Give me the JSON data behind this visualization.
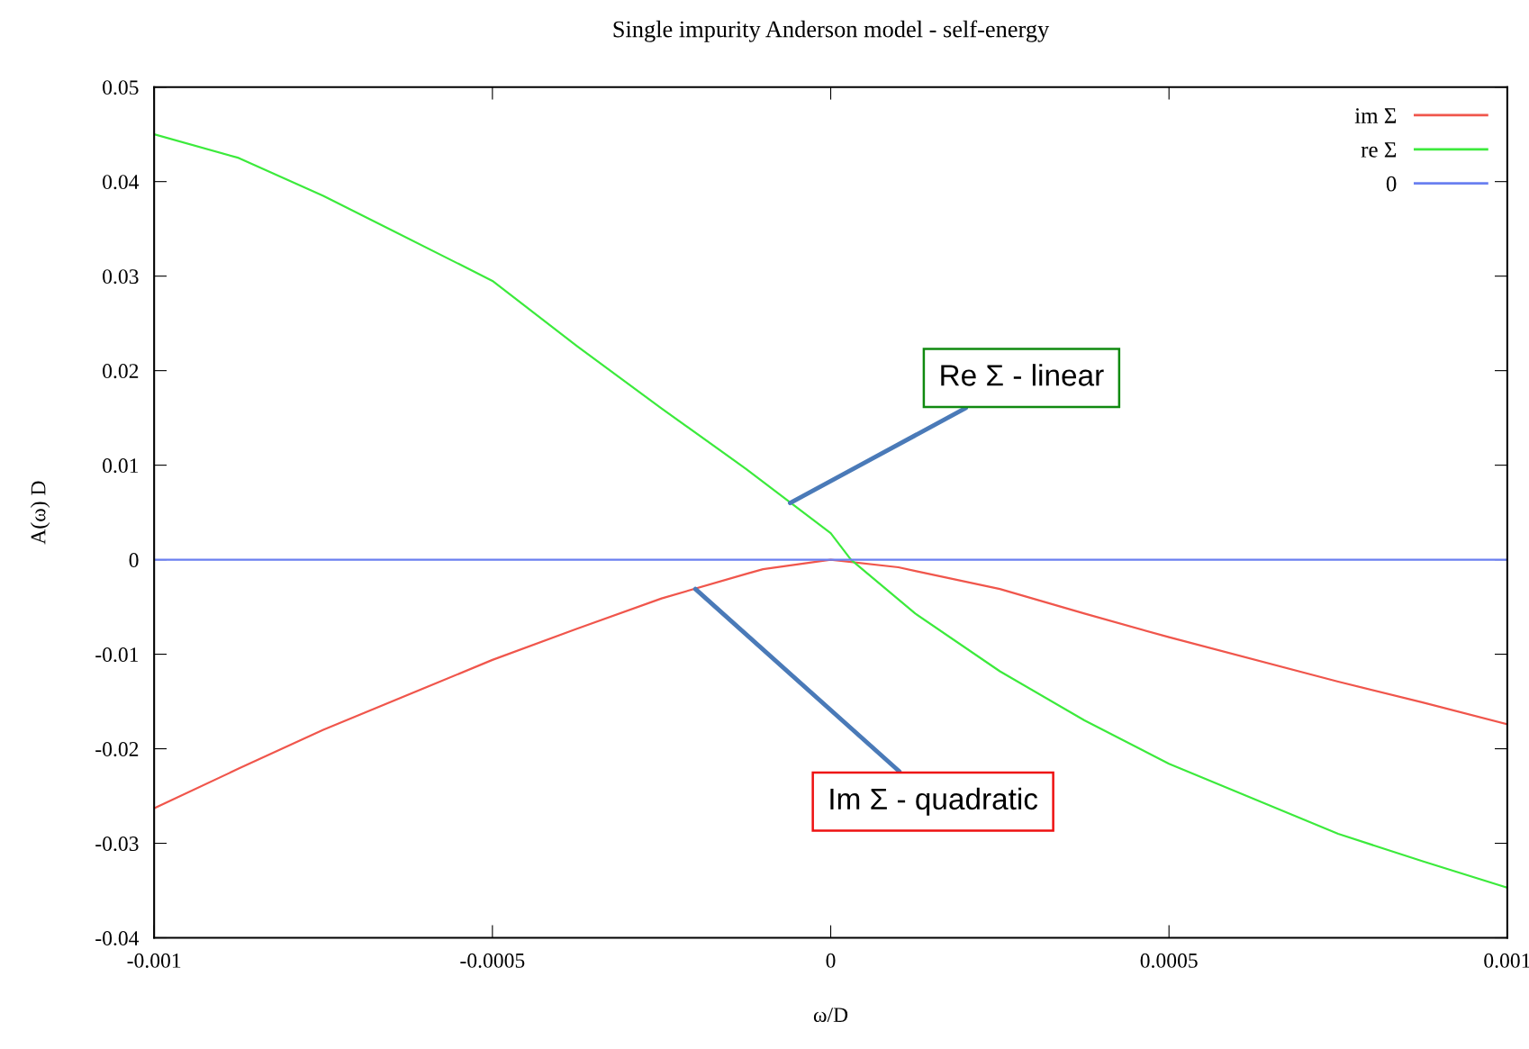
{
  "chart_data": {
    "type": "line",
    "title": "Single impurity Anderson model - self-energy",
    "xlabel": "ω/D",
    "ylabel": "A(ω) D",
    "xlim": [
      -0.001,
      0.001
    ],
    "xticks": [
      -0.001,
      -0.0005,
      0,
      0.0005,
      0.001
    ],
    "ylim": [
      -0.04,
      0.05
    ],
    "yticks": [
      -0.04,
      -0.03,
      -0.02,
      -0.01,
      0,
      0.01,
      0.02,
      0.03,
      0.04,
      0.05
    ],
    "grid": false,
    "legend": "top right",
    "marker": "none",
    "line_style": "solid",
    "series": [
      {
        "name": "im Σ",
        "color": "#f0564c",
        "x": [
          -0.001,
          -0.000875,
          -0.00075,
          -0.0005,
          -0.000375,
          -0.00025,
          -0.000125,
          -0.0001,
          0,
          0.0001,
          0.000125,
          0.00025,
          0.000375,
          0.0005,
          0.00075,
          0.000875,
          0.001
        ],
        "values": [
          -0.0263,
          -0.0221,
          -0.018,
          -0.0106,
          -0.0073,
          -0.0041,
          -0.0015,
          -0.001,
          0,
          -0.0008,
          -0.0012,
          -0.0031,
          -0.0057,
          -0.0082,
          -0.0129,
          -0.0151,
          -0.0174
        ]
      },
      {
        "name": "re Σ",
        "color": "#3cea3c",
        "x": [
          -0.001,
          -0.000875,
          -0.00075,
          -0.0005,
          -0.000375,
          -0.00025,
          -0.000125,
          0,
          3e-05,
          0.000125,
          0.00025,
          0.000375,
          0.0005,
          0.00075,
          0.000875,
          0.001
        ],
        "values": [
          0.045,
          0.0425,
          0.0385,
          0.0295,
          0.0226,
          0.016,
          0.0096,
          0.0028,
          0,
          -0.0057,
          -0.0118,
          -0.017,
          -0.0216,
          -0.029,
          -0.0319,
          -0.0347
        ]
      },
      {
        "name": "0",
        "color": "#6a7ff0",
        "x": [
          -0.001,
          0.001
        ],
        "values": [
          0,
          0
        ]
      }
    ],
    "annotations": [
      {
        "text": "Re Σ - linear",
        "x": -6e-05,
        "y": 0.006
      },
      {
        "text": "Im Σ - quadratic",
        "x": -0.0002,
        "y": -0.0031
      }
    ]
  }
}
